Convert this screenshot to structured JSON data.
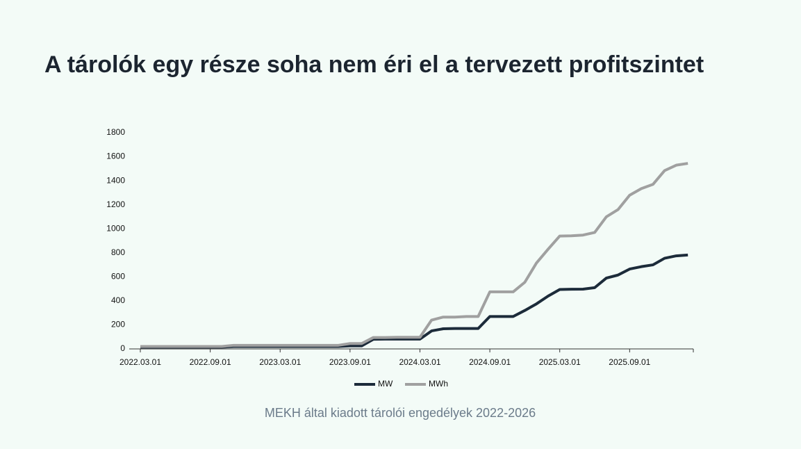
{
  "chart_data": {
    "type": "line",
    "title": "A tárolók egy része soha nem éri el a tervezett profitszintet",
    "caption": "MEKH által kiadott tárolói engedélyek 2022-2026",
    "categories": [
      "2022.03.01",
      null,
      null,
      null,
      null,
      null,
      "2022.09.01",
      null,
      null,
      null,
      null,
      null,
      "2023.03.01",
      null,
      null,
      null,
      null,
      null,
      "2023.09.01",
      null,
      null,
      null,
      null,
      null,
      "2024.03.01",
      null,
      null,
      null,
      null,
      null,
      "2024.09.01",
      null,
      null,
      null,
      null,
      null,
      "2025.03.01",
      null,
      null,
      null,
      null,
      null,
      "2025.09.01",
      null,
      null,
      null,
      null,
      null
    ],
    "series": [
      {
        "name": "MW",
        "color": "#1c2b3a",
        "values": [
          15,
          15,
          15,
          15,
          15,
          15,
          15,
          15,
          20,
          20,
          20,
          20,
          20,
          20,
          20,
          20,
          20,
          20,
          25,
          25,
          80,
          82,
          82,
          82,
          82,
          150,
          168,
          170,
          170,
          170,
          270,
          270,
          270,
          320,
          375,
          440,
          495,
          497,
          498,
          510,
          590,
          615,
          665,
          685,
          700,
          755,
          775,
          782
        ]
      },
      {
        "name": "MWh",
        "color": "#a0a0a0",
        "values": [
          20,
          20,
          20,
          20,
          20,
          20,
          20,
          20,
          30,
          30,
          30,
          30,
          30,
          30,
          30,
          30,
          30,
          30,
          45,
          45,
          95,
          95,
          97,
          97,
          97,
          240,
          265,
          265,
          270,
          270,
          475,
          475,
          475,
          555,
          715,
          830,
          940,
          942,
          948,
          970,
          1100,
          1160,
          1280,
          1335,
          1370,
          1485,
          1530,
          1545
        ]
      }
    ],
    "ylim": [
      0,
      1800
    ],
    "yticks": [
      0,
      200,
      400,
      600,
      800,
      1000,
      1200,
      1400,
      1600,
      1800
    ],
    "grid": false,
    "legend": "bottom"
  }
}
